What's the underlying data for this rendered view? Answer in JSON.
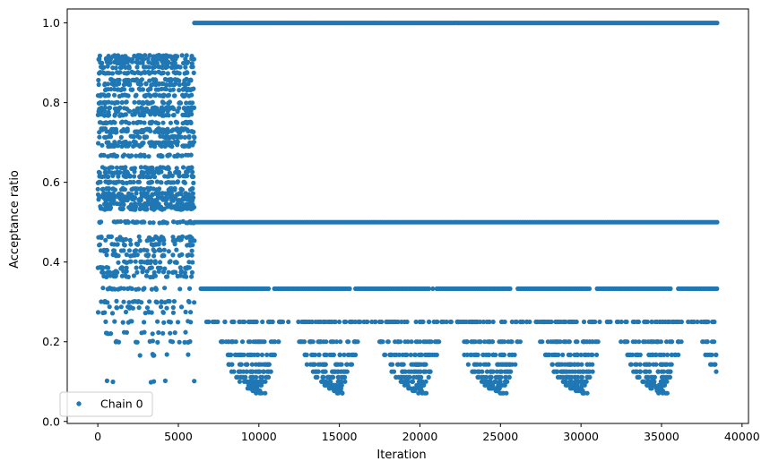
{
  "chart_data": {
    "type": "scatter",
    "xlabel": "Iteration",
    "ylabel": "Acceptance ratio",
    "xlim": [
      -1900,
      40400
    ],
    "ylim": [
      -0.005,
      1.035
    ],
    "xticks": [
      0,
      5000,
      10000,
      15000,
      20000,
      25000,
      30000,
      35000,
      40000
    ],
    "xtick_labels": [
      "0",
      "5000",
      "10000",
      "15000",
      "20000",
      "25000",
      "30000",
      "35000",
      "40000"
    ],
    "yticks": [
      0.0,
      0.2,
      0.4,
      0.6,
      0.8,
      1.0
    ],
    "ytick_labels": [
      "0.0",
      "0.2",
      "0.4",
      "0.6",
      "0.8",
      "1.0"
    ],
    "grid": false,
    "legend_position": "lower-left",
    "series": [
      {
        "name": "Chain 0",
        "color": "#1f77b4",
        "marker": "circle",
        "segments": [
          {
            "x_range": [
              0,
              6000
            ],
            "y_levels": [
              0.917,
              0.909,
              0.9,
              0.889,
              0.875,
              0.857,
              0.846,
              0.833,
              0.818,
              0.8,
              0.786,
              0.778,
              0.769,
              0.75,
              0.733,
              0.727,
              0.714,
              0.7,
              0.692,
              0.667,
              0.636,
              0.625,
              0.615,
              0.6,
              0.583,
              0.571,
              0.563,
              0.556,
              0.545,
              0.538,
              0.533,
              0.5,
              0.462,
              0.455,
              0.444,
              0.429,
              0.417,
              0.4,
              0.385,
              0.375,
              0.364,
              0.333,
              0.3,
              0.286,
              0.273,
              0.25,
              0.222,
              0.2,
              0.167,
              0.1
            ],
            "density": "dense"
          },
          {
            "x_range": [
              6000,
              38500
            ],
            "y_levels": [
              1.0,
              0.5
            ],
            "density": "continuous"
          },
          {
            "x_range": [
              6000,
              38500
            ],
            "y_levels": [
              0.333
            ],
            "density": "near-continuous"
          },
          {
            "x_range": [
              6000,
              38500
            ],
            "y_levels": [
              0.25,
              0.2,
              0.167,
              0.143,
              0.125,
              0.111,
              0.1,
              0.091,
              0.083,
              0.077,
              0.071
            ],
            "density": "periodic-clusters",
            "cluster_period": 5000
          }
        ]
      }
    ]
  }
}
